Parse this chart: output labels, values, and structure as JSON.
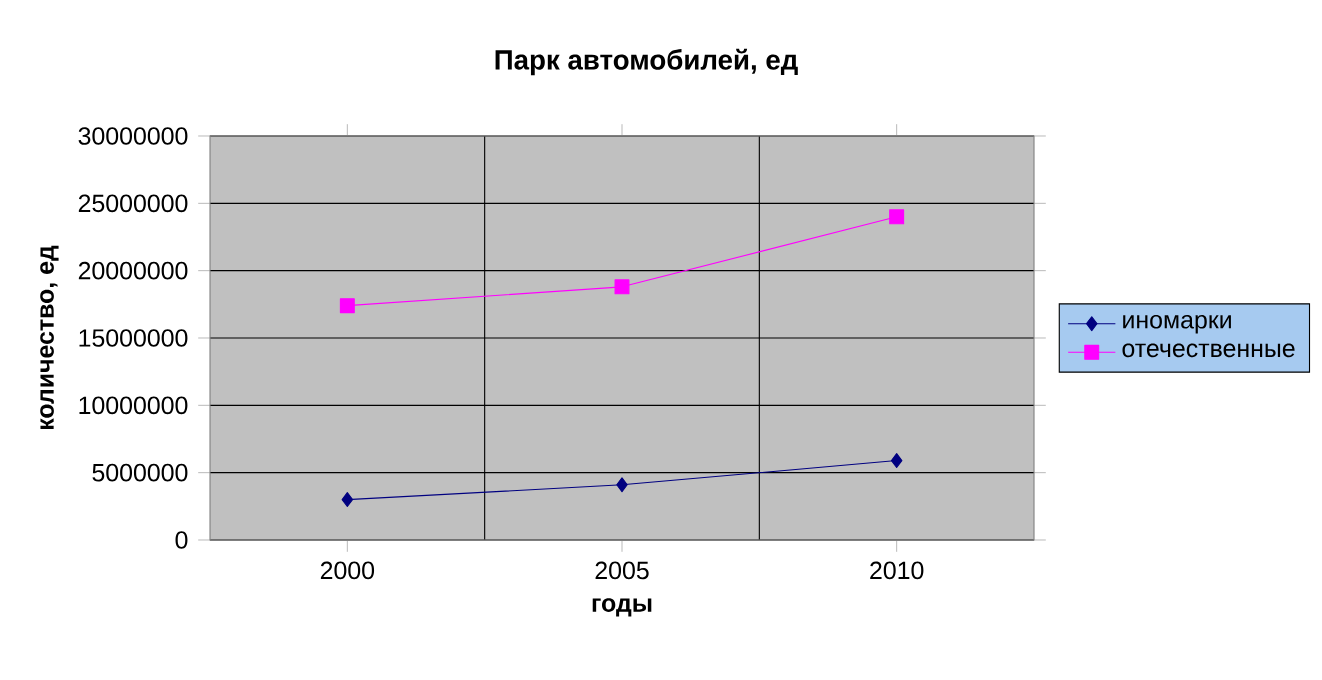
{
  "chart_data": {
    "type": "line",
    "title": "Парк автомобилей, ед",
    "xlabel": "годы",
    "ylabel": "количество, ед",
    "categories": [
      "2000",
      "2005",
      "2010"
    ],
    "series": [
      {
        "name": "иномарки",
        "color": "#000080",
        "values": [
          3000000,
          4100000,
          5900000
        ],
        "marker": "diamond"
      },
      {
        "name": "отечественные",
        "color": "#ff00ff",
        "values": [
          17400000,
          18800000,
          24000000
        ],
        "marker": "square"
      }
    ],
    "ylim": [
      0,
      30000000
    ],
    "yticks": [
      0,
      5000000,
      10000000,
      15000000,
      20000000,
      25000000,
      30000000
    ],
    "grid": true,
    "legend": "right"
  }
}
